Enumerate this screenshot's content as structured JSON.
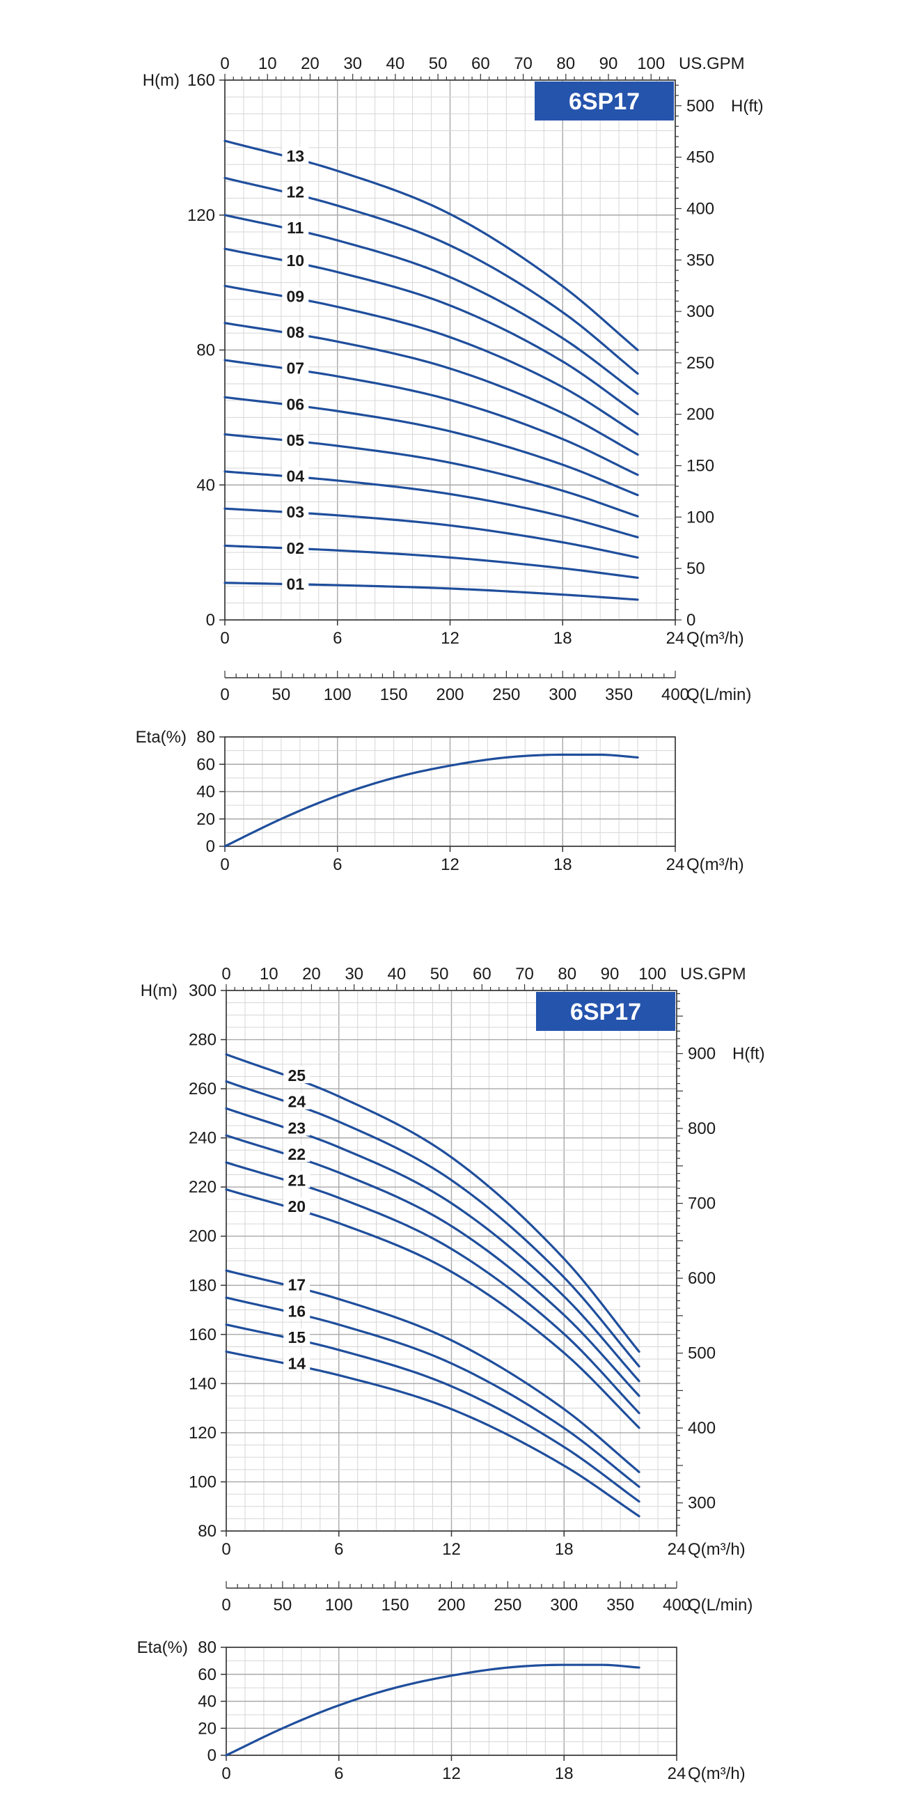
{
  "chart_data": [
    {
      "type": "line",
      "title": "6SP17",
      "ylabel": "H(m)",
      "y2label": "H(ft)",
      "xlabel": "Q(m³/h)",
      "x_top_label": "US.GPM",
      "x_lmin_label": "Q(L/min)",
      "xlim": [
        0,
        24
      ],
      "ylim": [
        0,
        160
      ],
      "x_ticks": [
        0,
        6,
        12,
        18,
        24
      ],
      "y_ticks": [
        0,
        40,
        80,
        120,
        160
      ],
      "gpm_ticks": [
        0,
        10,
        20,
        30,
        40,
        50,
        60,
        70,
        80,
        90,
        100
      ],
      "ft_ticks": [
        0,
        50,
        100,
        150,
        200,
        250,
        300,
        350,
        400,
        450,
        500
      ],
      "lmin_ticks": [
        0,
        50,
        100,
        150,
        200,
        250,
        300,
        350,
        400
      ],
      "grid": true,
      "series": [
        {
          "name": "01",
          "x": [
            0,
            6,
            12,
            18,
            22
          ],
          "values": [
            11,
            10.3,
            9.3,
            7.5,
            6
          ]
        },
        {
          "name": "02",
          "x": [
            0,
            6,
            12,
            18,
            22
          ],
          "values": [
            22,
            20.6,
            18.5,
            15.3,
            12.5
          ]
        },
        {
          "name": "03",
          "x": [
            0,
            6,
            12,
            18,
            22
          ],
          "values": [
            33,
            31,
            28,
            23,
            18.5
          ]
        },
        {
          "name": "04",
          "x": [
            0,
            6,
            12,
            18,
            22
          ],
          "values": [
            44,
            41.3,
            37.3,
            30.7,
            24.5
          ]
        },
        {
          "name": "05",
          "x": [
            0,
            6,
            12,
            18,
            22
          ],
          "values": [
            55,
            51.6,
            46.6,
            38.3,
            30.7
          ]
        },
        {
          "name": "06",
          "x": [
            0,
            6,
            12,
            18,
            22
          ],
          "values": [
            66,
            61.9,
            55.9,
            46,
            37
          ]
        },
        {
          "name": "07",
          "x": [
            0,
            6,
            12,
            18,
            22
          ],
          "values": [
            77,
            72.2,
            65.2,
            53.6,
            43
          ]
        },
        {
          "name": "08",
          "x": [
            0,
            6,
            12,
            18,
            22
          ],
          "values": [
            88,
            82.5,
            74.5,
            61.3,
            49
          ]
        },
        {
          "name": "09",
          "x": [
            0,
            6,
            12,
            18,
            22
          ],
          "values": [
            99,
            92.8,
            83.8,
            69,
            55
          ]
        },
        {
          "name": "10",
          "x": [
            0,
            6,
            12,
            18,
            22
          ],
          "values": [
            110,
            103.1,
            93.2,
            76.6,
            61
          ]
        },
        {
          "name": "11",
          "x": [
            0,
            6,
            12,
            18,
            22
          ],
          "values": [
            120,
            112.5,
            101.6,
            83.5,
            67
          ]
        },
        {
          "name": "12",
          "x": [
            0,
            6,
            12,
            18,
            22
          ],
          "values": [
            131,
            122.8,
            111,
            91.2,
            73
          ]
        },
        {
          "name": "13",
          "x": [
            0,
            6,
            12,
            18,
            22
          ],
          "values": [
            142,
            133.1,
            120.3,
            98.9,
            80
          ]
        }
      ],
      "efficiency": {
        "ylabel": "Eta(%)",
        "xlabel": "Q(m³/h)",
        "xlim": [
          0,
          24
        ],
        "ylim": [
          0,
          80
        ],
        "y_ticks": [
          0,
          20,
          40,
          60,
          80
        ],
        "x_ticks": [
          0,
          6,
          12,
          18,
          24
        ],
        "x": [
          0,
          3,
          6,
          9,
          12,
          15,
          18,
          20,
          22
        ],
        "values": [
          0,
          20,
          37,
          50,
          59,
          65,
          67,
          67,
          65
        ]
      }
    },
    {
      "type": "line",
      "title": "6SP17",
      "ylabel": "H(m)",
      "y2label": "H(ft)",
      "xlabel": "Q(m³/h)",
      "x_top_label": "US.GPM",
      "x_lmin_label": "Q(L/min)",
      "xlim": [
        0,
        24
      ],
      "ylim": [
        80,
        300
      ],
      "x_ticks": [
        0,
        6,
        12,
        18,
        24
      ],
      "y_ticks": [
        80,
        100,
        120,
        140,
        160,
        180,
        200,
        220,
        240,
        260,
        280,
        300
      ],
      "gpm_ticks": [
        0,
        10,
        20,
        30,
        40,
        50,
        60,
        70,
        80,
        90,
        100
      ],
      "ft_ticks": [
        300,
        400,
        500,
        600,
        700,
        800,
        900
      ],
      "lmin_ticks": [
        0,
        50,
        100,
        150,
        200,
        250,
        300,
        350,
        400
      ],
      "grid": true,
      "series": [
        {
          "name": "14",
          "x": [
            0,
            6,
            12,
            18,
            22
          ],
          "values": [
            153,
            143.4,
            129.6,
            106.6,
            86
          ]
        },
        {
          "name": "15",
          "x": [
            0,
            6,
            12,
            18,
            22
          ],
          "values": [
            164,
            153.7,
            138.9,
            114.2,
            92
          ]
        },
        {
          "name": "16",
          "x": [
            0,
            6,
            12,
            18,
            22
          ],
          "values": [
            175,
            164,
            148.2,
            121.9,
            98
          ]
        },
        {
          "name": "17",
          "x": [
            0,
            6,
            12,
            18,
            22
          ],
          "values": [
            186,
            174.4,
            157.6,
            129.6,
            104
          ]
        },
        {
          "name": "20",
          "x": [
            0,
            6,
            12,
            18,
            22
          ],
          "values": [
            219,
            205.3,
            185.5,
            152.5,
            122
          ]
        },
        {
          "name": "21",
          "x": [
            0,
            6,
            12,
            18,
            22
          ],
          "values": [
            230,
            215.6,
            194.8,
            160.2,
            128
          ]
        },
        {
          "name": "22",
          "x": [
            0,
            6,
            12,
            18,
            22
          ],
          "values": [
            241,
            225.9,
            204.1,
            167.9,
            135
          ]
        },
        {
          "name": "23",
          "x": [
            0,
            6,
            12,
            18,
            22
          ],
          "values": [
            252,
            236.2,
            213.4,
            175.5,
            141
          ]
        },
        {
          "name": "24",
          "x": [
            0,
            6,
            12,
            18,
            22
          ],
          "values": [
            263,
            246.6,
            222.8,
            183.2,
            147
          ]
        },
        {
          "name": "25",
          "x": [
            0,
            6,
            12,
            18,
            22
          ],
          "values": [
            274,
            256.9,
            232.1,
            190.8,
            153
          ]
        }
      ],
      "efficiency": {
        "ylabel": "Eta(%)",
        "xlabel": "Q(m³/h)",
        "xlim": [
          0,
          24
        ],
        "ylim": [
          0,
          80
        ],
        "y_ticks": [
          0,
          20,
          40,
          60,
          80
        ],
        "x_ticks": [
          0,
          6,
          12,
          18,
          24
        ],
        "x": [
          0,
          3,
          6,
          9,
          12,
          15,
          18,
          20,
          22
        ],
        "values": [
          0,
          20,
          37,
          50,
          59,
          65,
          67,
          67,
          65
        ]
      }
    }
  ],
  "colors": {
    "curve": "#1f4e9c",
    "badge": "#2554ad",
    "grid_major": "#a8a8a8",
    "grid_minor": "#d6d6d6",
    "axis": "#333333"
  }
}
